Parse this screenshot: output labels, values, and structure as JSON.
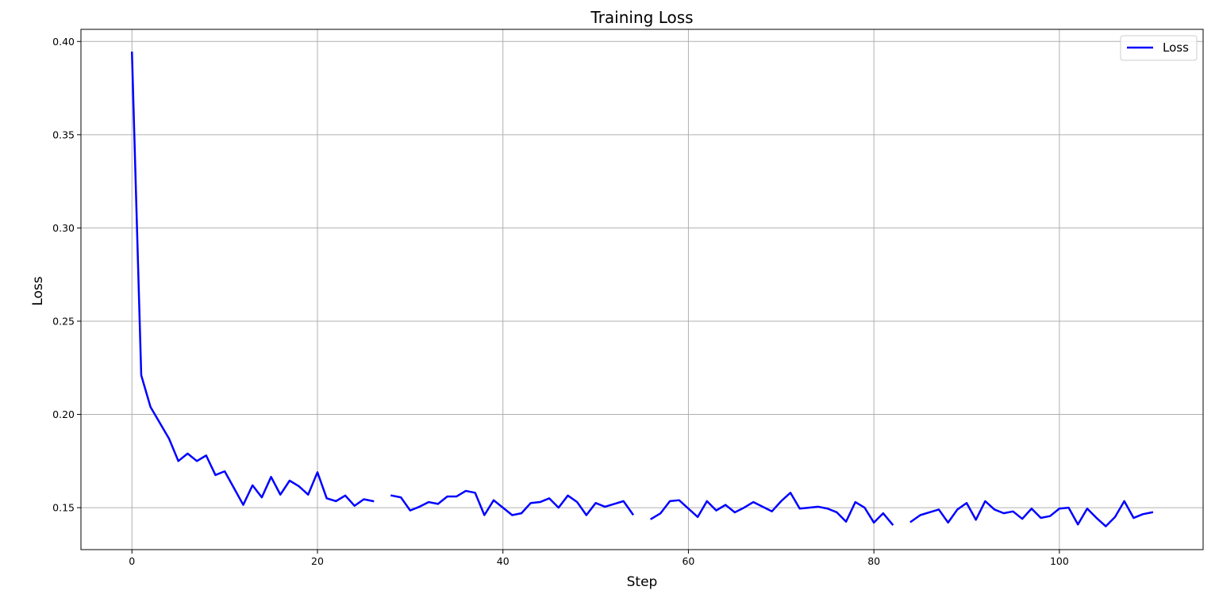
{
  "chart_data": {
    "type": "line",
    "title": "Training Loss",
    "xlabel": "Step",
    "ylabel": "Loss",
    "xlim": [
      -5.5,
      115.5
    ],
    "ylim": [
      0.1275,
      0.4065
    ],
    "xticks": [
      0,
      20,
      40,
      60,
      80,
      100
    ],
    "yticks": [
      0.15,
      0.2,
      0.25,
      0.3,
      0.35,
      0.4
    ],
    "ytick_labels": [
      "0.15",
      "0.20",
      "0.25",
      "0.30",
      "0.35",
      "0.40"
    ],
    "grid": true,
    "legend_position": "top-right",
    "series": [
      {
        "name": "Loss",
        "color": "#0000ff",
        "x": [
          0,
          1,
          2,
          3,
          4,
          5,
          6,
          7,
          8,
          9,
          10,
          11,
          12,
          13,
          14,
          15,
          16,
          17,
          18,
          19,
          20,
          21,
          22,
          23,
          24,
          25,
          26,
          27,
          28,
          29,
          30,
          31,
          32,
          33,
          34,
          35,
          36,
          37,
          38,
          39,
          40,
          41,
          42,
          43,
          44,
          45,
          46,
          47,
          48,
          49,
          50,
          51,
          52,
          53,
          54,
          55,
          56,
          57,
          58,
          59,
          60,
          61,
          62,
          63,
          64,
          65,
          66,
          67,
          68,
          69,
          70,
          71,
          72,
          73,
          74,
          75,
          76,
          77,
          78,
          79,
          80,
          81,
          82,
          83,
          84,
          85,
          86,
          87,
          88,
          89,
          90,
          91,
          92,
          93,
          94,
          95,
          96,
          97,
          98,
          99,
          100,
          101,
          102,
          103,
          104,
          105,
          106,
          107,
          108,
          109,
          110
        ],
        "y": [
          0.394,
          0.221,
          0.204,
          0.1955,
          0.187,
          0.175,
          0.179,
          0.175,
          0.178,
          0.1675,
          0.1695,
          0.1605,
          0.1515,
          0.162,
          0.1555,
          0.1665,
          0.157,
          0.1645,
          0.1615,
          0.157,
          0.169,
          0.155,
          0.1535,
          0.1565,
          0.151,
          0.1545,
          0.1535,
          null,
          0.1565,
          0.1555,
          0.1485,
          0.1505,
          0.153,
          0.152,
          0.156,
          0.156,
          0.159,
          0.158,
          0.146,
          0.154,
          0.15,
          0.146,
          0.147,
          0.1525,
          0.153,
          0.155,
          0.15,
          0.1565,
          0.153,
          0.146,
          0.1525,
          0.1505,
          0.152,
          0.1535,
          0.1465,
          null,
          0.144,
          0.147,
          0.1535,
          0.154,
          0.1495,
          0.145,
          0.1535,
          0.1485,
          0.1515,
          0.1475,
          0.15,
          0.153,
          0.1505,
          0.148,
          0.1535,
          0.158,
          0.1495,
          0.15,
          0.1505,
          0.1495,
          0.1475,
          0.1425,
          0.153,
          0.15,
          0.142,
          0.147,
          0.141,
          null,
          0.1425,
          0.146,
          0.1475,
          0.149,
          0.142,
          0.149,
          0.1525,
          0.1435,
          0.1535,
          0.149,
          0.147,
          0.148,
          0.144,
          0.1495,
          0.1445,
          0.1455,
          0.1495,
          0.15,
          0.141,
          0.1495,
          0.1445,
          0.14,
          0.145,
          0.1535,
          0.1445,
          0.1465,
          0.1475
        ]
      }
    ]
  }
}
